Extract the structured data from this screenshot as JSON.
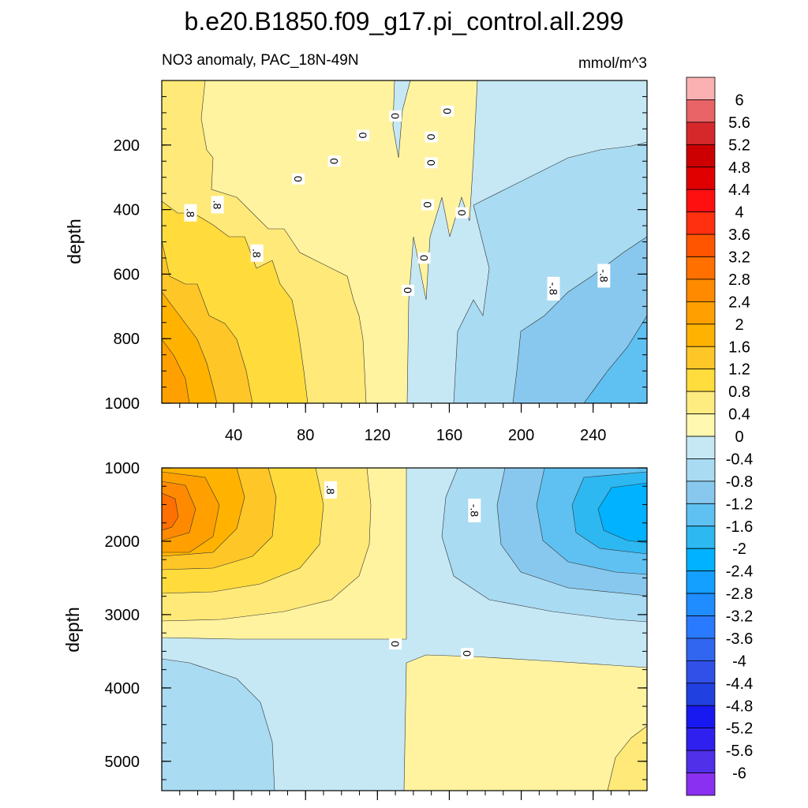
{
  "title": "b.e20.B1850.f09_g17.pi_control.all.299",
  "chart_data": {
    "type": "heatmap",
    "title": "b.e20.B1850.f09_g17.pi_control.all.299",
    "subtitle": "NO3 anomaly, PAC_18N-49N",
    "units": "mmol/m^3",
    "xlim": [
      0,
      270
    ],
    "x_ticks": [
      "40",
      "80",
      "120",
      "160",
      "200",
      "240"
    ],
    "x_tick_values": [
      40,
      80,
      120,
      160,
      200,
      240
    ],
    "panels": [
      {
        "name": "upper",
        "ylabel": "depth",
        "ylim": [
          0,
          1000
        ],
        "y_ticks": [
          "200",
          "400",
          "600",
          "800",
          "1000"
        ],
        "y_tick_values": [
          200,
          400,
          600,
          800,
          1000
        ],
        "contour_labels": [
          {
            "text": "0",
            "x": 76,
            "y": 305
          },
          {
            "text": "0",
            "x": 96,
            "y": 250
          },
          {
            "text": "0",
            "x": 112,
            "y": 170
          },
          {
            "text": "0",
            "x": 130,
            "y": 110
          },
          {
            "text": "0",
            "x": 159,
            "y": 95
          },
          {
            "text": "0",
            "x": 150,
            "y": 175
          },
          {
            "text": "0",
            "x": 150,
            "y": 255
          },
          {
            "text": "0",
            "x": 148,
            "y": 385
          },
          {
            "text": "0",
            "x": 146,
            "y": 550
          },
          {
            "text": "0",
            "x": 137,
            "y": 650
          },
          {
            "text": "0",
            "x": 167,
            "y": 410
          },
          {
            "text": ".8",
            "x": 16,
            "y": 410
          },
          {
            "text": ".8",
            "x": 31,
            "y": 385
          },
          {
            "text": ".8",
            "x": 53,
            "y": 535
          },
          {
            "text": "-.8",
            "x": 218,
            "y": 645
          },
          {
            "text": "-.8",
            "x": 246,
            "y": 605
          }
        ]
      },
      {
        "name": "lower",
        "ylabel": "depth",
        "ylim": [
          1000,
          5400
        ],
        "y_ticks": [
          "1000",
          "2000",
          "3000",
          "4000",
          "5000"
        ],
        "y_tick_values": [
          1000,
          2000,
          3000,
          4000,
          5000
        ],
        "contour_labels": [
          {
            "text": ".8",
            "x": 94,
            "y": 1300
          },
          {
            "text": "-.8",
            "x": 174,
            "y": 1580
          },
          {
            "text": "0",
            "x": 130,
            "y": 3400
          },
          {
            "text": "0",
            "x": 170,
            "y": 3530
          }
        ]
      }
    ],
    "colorbar": {
      "labels": [
        "6",
        "5.6",
        "5.2",
        "4.8",
        "4.4",
        "4",
        "3.6",
        "3.2",
        "2.8",
        "2.4",
        "2",
        "1.6",
        "1.2",
        "0.8",
        "0.4",
        "0",
        "-0.4",
        "-0.8",
        "-1.2",
        "-1.6",
        "-2",
        "-2.4",
        "-2.8",
        "-3.2",
        "-3.6",
        "-4",
        "-4.4",
        "-4.8",
        "-5.2",
        "-5.6",
        "-6"
      ],
      "colors": [
        "#fbb1b1",
        "#e86466",
        "#d6282b",
        "#cc0000",
        "#e00000",
        "#ff1010",
        "#ff3010",
        "#ff5500",
        "#ff7000",
        "#ff8a00",
        "#ffa000",
        "#ffb300",
        "#ffc628",
        "#ffdd3c",
        "#ffec80",
        "#fff8b0",
        "#c6e8f5",
        "#a9dbf2",
        "#88c8ee",
        "#5ec1f2",
        "#2db8f2",
        "#00b2ff",
        "#13a0ff",
        "#1f8cff",
        "#2a7aff",
        "#3066f0",
        "#3050e8",
        "#2040e0",
        "#1818f0",
        "#3020f0",
        "#5030e8",
        "#8a30f0"
      ]
    }
  }
}
